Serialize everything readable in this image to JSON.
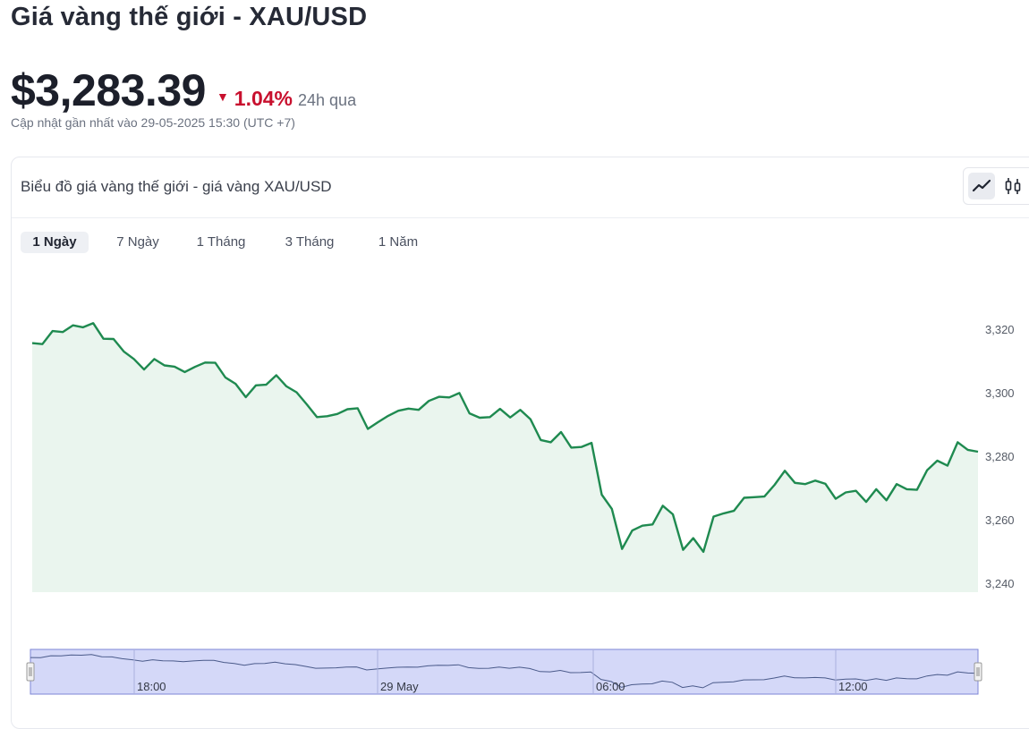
{
  "header": {
    "title": "Giá vàng thế giới - XAU/USD",
    "price": "$3,283.39",
    "change_arrow": "▼",
    "change_pct": "1.04%",
    "change_period": "24h qua",
    "updated": "Cập nhật gần nhất vào 29-05-2025 15:30 (UTC +7)"
  },
  "card": {
    "title": "Biểu đồ giá vàng thế giới - giá vàng XAU/USD",
    "tabs": [
      {
        "label": "1 Ngày",
        "active": true
      },
      {
        "label": "7 Ngày",
        "active": false
      },
      {
        "label": "1 Tháng",
        "active": false
      },
      {
        "label": "3 Tháng",
        "active": false
      },
      {
        "label": "1 Năm",
        "active": false
      }
    ],
    "chart_type_buttons": [
      "line-chart-icon",
      "candlestick-icon"
    ]
  },
  "colors": {
    "line": "#1f8a50",
    "area": "#eaf5ee",
    "negative": "#c8102e",
    "navigator_bg": "#d4d8f8",
    "navigator_border": "#7d86d6"
  },
  "chart_data": {
    "type": "area",
    "title": "",
    "xlabel": "",
    "ylabel": "",
    "ylim": [
      3240,
      3325
    ],
    "yticks": [
      "3,320",
      "3,300",
      "3,280",
      "3,260",
      "3,240"
    ],
    "ytick_values": [
      3320,
      3300,
      3280,
      3260,
      3240
    ],
    "navigator_labels": [
      "18:00",
      "29 May",
      "06:00",
      "12:00"
    ],
    "series": [
      {
        "values": [
          3315.6,
          3315.3,
          3319.4,
          3319.1,
          3321.2,
          3320.6,
          3321.9,
          3317.0,
          3316.9,
          3313.0,
          3310.6,
          3307.3,
          3310.6,
          3308.6,
          3308.2,
          3306.5,
          3308.1,
          3309.5,
          3309.4,
          3304.8,
          3302.8,
          3298.6,
          3302.3,
          3302.5,
          3305.5,
          3302.0,
          3300.1,
          3296.3,
          3292.3,
          3292.6,
          3293.3,
          3294.8,
          3295.1,
          3288.6,
          3290.7,
          3292.7,
          3294.3,
          3295.0,
          3294.6,
          3297.4,
          3298.7,
          3298.5,
          3299.9,
          3293.5,
          3292.1,
          3292.3,
          3294.9,
          3292.2,
          3294.6,
          3291.6,
          3285.1,
          3284.4,
          3287.6,
          3282.7,
          3282.9,
          3284.2,
          3267.9,
          3263.4,
          3250.8,
          3256.6,
          3258.1,
          3258.5,
          3264.4,
          3261.7,
          3250.5,
          3254.2,
          3249.9,
          3261.0,
          3262.0,
          3262.8,
          3266.9,
          3267.1,
          3267.3,
          3271.0,
          3275.4,
          3271.6,
          3271.2,
          3272.3,
          3271.3,
          3266.6,
          3268.6,
          3269.1,
          3265.6,
          3269.6,
          3266.1,
          3271.2,
          3269.6,
          3269.4,
          3275.6,
          3278.6,
          3277.0,
          3284.4,
          3282.0,
          3281.4
        ]
      }
    ]
  }
}
